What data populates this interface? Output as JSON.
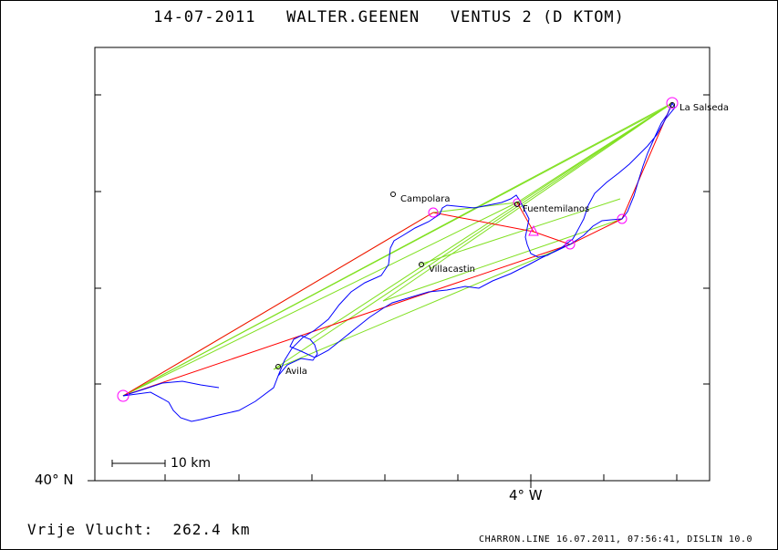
{
  "header": {
    "title": "14-07-2011   WALTER.GEENEN   VENTUS 2 (D KTOM)"
  },
  "axes": {
    "lat_label": "40° N",
    "lon_label": "4° W"
  },
  "scale_bar": {
    "label": "10 km"
  },
  "places": [
    {
      "name": "La Salseda"
    },
    {
      "name": "Campolara"
    },
    {
      "name": "Fuentemilanos"
    },
    {
      "name": "Villacastin"
    },
    {
      "name": "Avila"
    }
  ],
  "summary": {
    "label": "Vrije Vlucht:",
    "value": "262.4 km"
  },
  "footer": {
    "text": "CHARRON.LINE 16.07.2011, 07:56:41, DISLIN 10.0"
  },
  "colors": {
    "track": "#0000ff",
    "task_legs": "#ff0000",
    "triangle_legs": "#80e020",
    "turnpoints": "#ff00ff",
    "frame": "#000000"
  }
}
